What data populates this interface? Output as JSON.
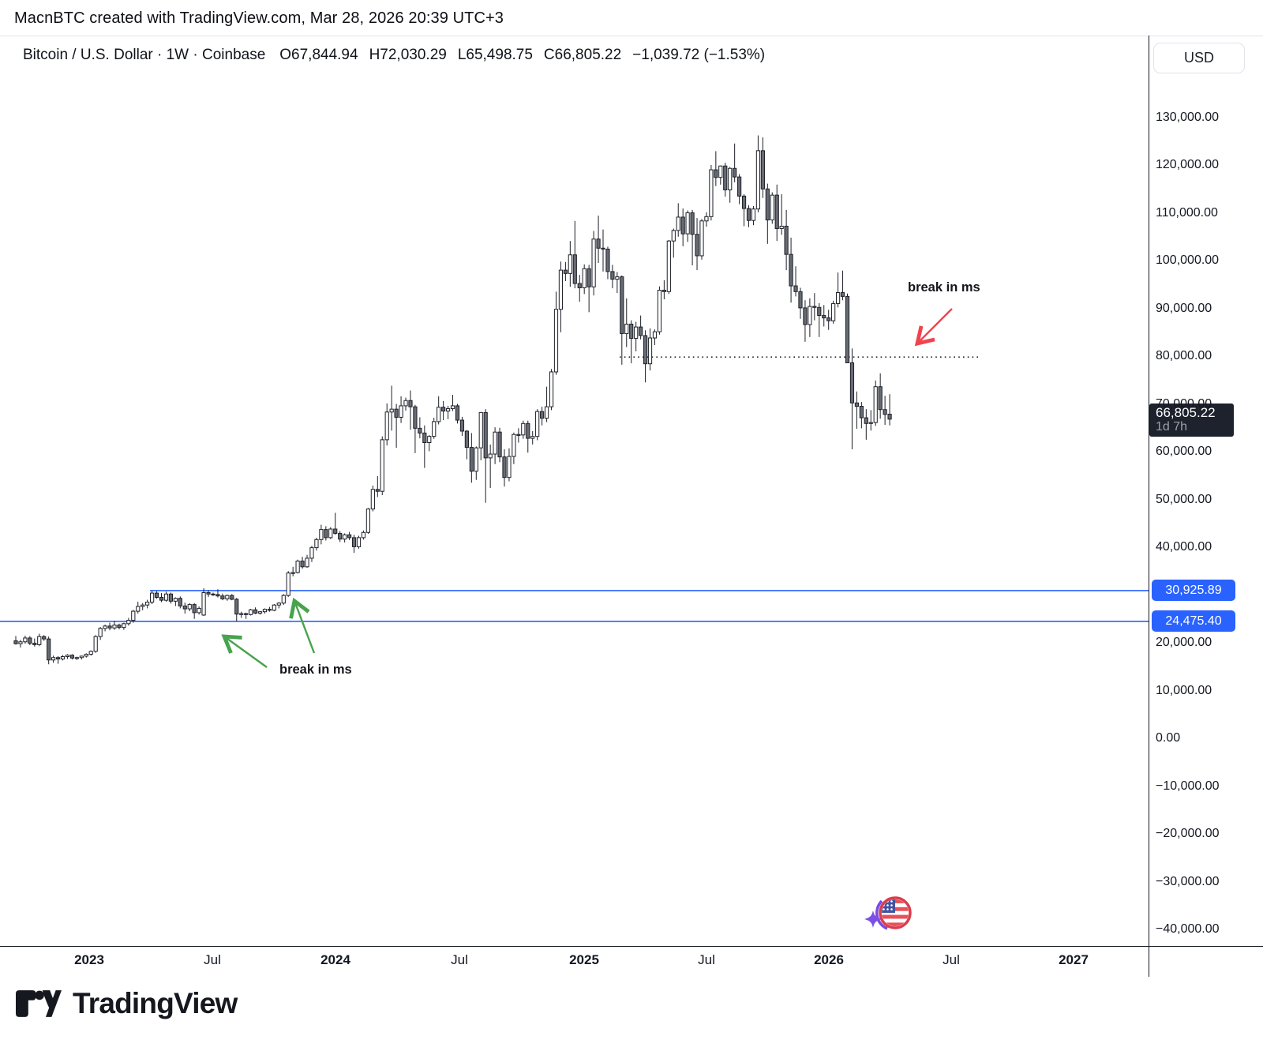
{
  "attribution": "MacnBTC created with TradingView.com, Mar 28, 2026 20:39 UTC+3",
  "legend": {
    "series_title": "Bitcoin / U.S. Dollar · 1W · Coinbase",
    "open": "O67,844.94",
    "high": "H72,030.29",
    "low": "L65,498.75",
    "close": "C66,805.22",
    "change": "−1,039.72 (−1.53%)"
  },
  "axis_right": {
    "currency_button": "USD",
    "price_labels": [
      {
        "value": 130000,
        "text": "130,000.00"
      },
      {
        "value": 120000,
        "text": "120,000.00"
      },
      {
        "value": 110000,
        "text": "110,000.00"
      },
      {
        "value": 100000,
        "text": "100,000.00"
      },
      {
        "value": 90000,
        "text": "90,000.00"
      },
      {
        "value": 80000,
        "text": "80,000.00"
      },
      {
        "value": 70000,
        "text": "70,000.00"
      },
      {
        "value": 60000,
        "text": "60,000.00"
      },
      {
        "value": 50000,
        "text": "50,000.00"
      },
      {
        "value": 40000,
        "text": "40,000.00"
      },
      {
        "value": 20000,
        "text": "20,000.00"
      },
      {
        "value": 10000,
        "text": "10,000.00"
      },
      {
        "value": 0,
        "text": "0.00"
      },
      {
        "value": -10000,
        "text": "−10,000.00"
      },
      {
        "value": -20000,
        "text": "−20,000.00"
      },
      {
        "value": -30000,
        "text": "−30,000.00"
      },
      {
        "value": -40000,
        "text": "−40,000.00"
      }
    ],
    "level_tags": [
      {
        "value": 30925.89,
        "text": "30,925.89"
      },
      {
        "value": 24475.4,
        "text": "24,475.40"
      }
    ],
    "current_price_tag": {
      "price_value": 66805.22,
      "price_text": "66,805.22",
      "countdown": "1d 7h"
    }
  },
  "time_axis": {
    "labels": [
      "2023",
      "Jul",
      "2024",
      "Jul",
      "2025",
      "Jul",
      "2026",
      "Jul",
      "2027"
    ]
  },
  "annotations": {
    "red_note": {
      "text": "break in ms"
    },
    "green_note": {
      "text": "break in ms"
    }
  },
  "footer": {
    "logo_text": "TradingView"
  },
  "colors": {
    "level_blue": "#2962ff",
    "arrow_red": "#f1434e",
    "arrow_green": "#47a34c",
    "candle_up_fill": "#ffffff",
    "candle_down_fill": "#676b73",
    "candle_stroke": "#1c1f27",
    "price_tag_bg": "#1d222d",
    "axis_line": "#161a25"
  },
  "chart_data": {
    "type": "candlestick",
    "title": "Bitcoin / U.S. Dollar",
    "interval": "1W",
    "exchange": "Coinbase",
    "units": "USD thousands per candle [open, high, low, close]",
    "y_axis_visible_range": [
      -40000,
      130000
    ],
    "y_axis_tick_step": 10000,
    "x_axis_labels": [
      "2023",
      "Jul",
      "2024",
      "Jul",
      "2025",
      "Jul",
      "2026",
      "Jul",
      "2027"
    ],
    "grid": "off",
    "levels": [
      {
        "type": "hline",
        "price": 30925.89,
        "style": "solid",
        "color": "#2962ff",
        "label": "30,925.89"
      },
      {
        "type": "hline",
        "price": 24475.4,
        "style": "solid",
        "color": "#2962ff",
        "label": "24,475.40"
      },
      {
        "type": "hline",
        "price": 79800,
        "style": "dotted",
        "color": "#22252b",
        "label": ""
      }
    ],
    "candles": [
      [
        20.4,
        21.4,
        19.6,
        19.8
      ],
      [
        19.8,
        20.6,
        19.0,
        20.2
      ],
      [
        20.2,
        21.5,
        19.8,
        21.0
      ],
      [
        21.0,
        21.4,
        19.5,
        19.9
      ],
      [
        19.9,
        20.9,
        19.2,
        19.6
      ],
      [
        19.6,
        21.9,
        19.3,
        21.3
      ],
      [
        21.3,
        21.6,
        20.4,
        20.8
      ],
      [
        20.8,
        21.3,
        15.5,
        16.4
      ],
      [
        16.4,
        17.3,
        15.8,
        16.9
      ],
      [
        16.9,
        17.2,
        15.6,
        16.6
      ],
      [
        16.6,
        17.4,
        16.3,
        17.1
      ],
      [
        17.1,
        17.6,
        16.6,
        17.4
      ],
      [
        17.4,
        17.6,
        16.5,
        16.8
      ],
      [
        16.8,
        17.1,
        16.4,
        16.9
      ],
      [
        16.9,
        17.3,
        16.5,
        17.2
      ],
      [
        17.2,
        17.8,
        16.9,
        17.6
      ],
      [
        17.6,
        18.4,
        17.3,
        18.2
      ],
      [
        18.2,
        21.6,
        17.9,
        21.3
      ],
      [
        21.3,
        23.3,
        20.6,
        23.0
      ],
      [
        23.0,
        23.8,
        22.4,
        23.5
      ],
      [
        23.5,
        24.2,
        22.6,
        23.1
      ],
      [
        23.1,
        24.6,
        22.7,
        23.7
      ],
      [
        23.7,
        24.0,
        22.8,
        23.2
      ],
      [
        23.2,
        24.2,
        22.7,
        24.0
      ],
      [
        24.0,
        25.2,
        23.6,
        24.7
      ],
      [
        24.7,
        26.9,
        24.2,
        26.6
      ],
      [
        26.6,
        28.6,
        26.1,
        27.6
      ],
      [
        27.6,
        28.3,
        26.8,
        27.9
      ],
      [
        27.9,
        29.0,
        27.2,
        28.5
      ],
      [
        28.5,
        30.93,
        28.1,
        30.4
      ],
      [
        30.4,
        30.8,
        29.2,
        29.5
      ],
      [
        29.5,
        30.4,
        28.5,
        28.9
      ],
      [
        28.9,
        30.7,
        28.6,
        30.2
      ],
      [
        30.2,
        30.5,
        28.2,
        28.7
      ],
      [
        28.7,
        29.5,
        27.7,
        29.3
      ],
      [
        29.3,
        29.7,
        27.2,
        27.7
      ],
      [
        27.7,
        28.4,
        26.1,
        27.1
      ],
      [
        27.1,
        28.3,
        26.6,
        28.0
      ],
      [
        28.0,
        28.3,
        25.0,
        26.3
      ],
      [
        26.3,
        27.6,
        25.9,
        27.2
      ],
      [
        25.8,
        31.4,
        25.6,
        30.5
      ],
      [
        30.5,
        31.0,
        29.6,
        30.2
      ],
      [
        30.2,
        30.5,
        29.8,
        30.1
      ],
      [
        30.1,
        31.2,
        29.5,
        29.8
      ],
      [
        29.8,
        30.3,
        28.9,
        29.2
      ],
      [
        29.2,
        30.1,
        28.8,
        29.9
      ],
      [
        29.9,
        30.2,
        28.9,
        29.1
      ],
      [
        29.1,
        29.4,
        24.48,
        26.0
      ],
      [
        26.0,
        26.5,
        25.2,
        26.1
      ],
      [
        26.1,
        26.3,
        25.0,
        25.9
      ],
      [
        25.9,
        27.1,
        25.7,
        26.9
      ],
      [
        26.9,
        27.4,
        26.0,
        26.2
      ],
      [
        26.2,
        26.6,
        25.9,
        26.5
      ],
      [
        26.5,
        27.2,
        26.1,
        27.0
      ],
      [
        27.0,
        27.5,
        26.5,
        26.8
      ],
      [
        26.8,
        28.1,
        26.6,
        27.9
      ],
      [
        27.9,
        28.5,
        27.2,
        28.3
      ],
      [
        28.3,
        30.2,
        27.9,
        29.9
      ],
      [
        29.9,
        35.0,
        29.6,
        34.6
      ],
      [
        34.6,
        35.9,
        33.9,
        34.7
      ],
      [
        34.7,
        37.4,
        34.5,
        37.1
      ],
      [
        37.1,
        38.0,
        35.5,
        35.9
      ],
      [
        35.9,
        38.4,
        35.7,
        37.7
      ],
      [
        37.7,
        40.3,
        36.9,
        39.9
      ],
      [
        39.9,
        42.0,
        39.3,
        41.6
      ],
      [
        41.6,
        44.7,
        40.6,
        43.7
      ],
      [
        43.7,
        44.4,
        41.4,
        42.0
      ],
      [
        42.0,
        44.2,
        41.7,
        43.8
      ],
      [
        43.8,
        47.2,
        42.6,
        42.9
      ],
      [
        42.9,
        43.4,
        41.1,
        41.7
      ],
      [
        41.7,
        42.9,
        41.0,
        42.6
      ],
      [
        42.6,
        43.2,
        41.5,
        42.0
      ],
      [
        42.0,
        42.6,
        38.8,
        40.1
      ],
      [
        40.1,
        42.4,
        39.7,
        42.0
      ],
      [
        42.0,
        43.5,
        41.6,
        43.1
      ],
      [
        43.1,
        48.2,
        42.8,
        48.0
      ],
      [
        48.0,
        52.9,
        47.5,
        52.1
      ],
      [
        52.1,
        54.9,
        50.5,
        51.7
      ],
      [
        51.7,
        63.2,
        50.9,
        62.5
      ],
      [
        62.5,
        70.1,
        61.3,
        68.3
      ],
      [
        68.3,
        73.8,
        64.4,
        68.9
      ],
      [
        68.9,
        70.0,
        60.8,
        67.2
      ],
      [
        67.2,
        71.6,
        66.0,
        69.6
      ],
      [
        69.6,
        71.3,
        68.6,
        70.7
      ],
      [
        70.7,
        72.8,
        64.6,
        69.4
      ],
      [
        69.4,
        69.8,
        59.7,
        64.9
      ],
      [
        64.9,
        67.2,
        62.8,
        63.9
      ],
      [
        63.9,
        65.5,
        56.6,
        61.9
      ],
      [
        61.9,
        63.5,
        60.1,
        63.2
      ],
      [
        63.2,
        67.1,
        62.7,
        66.3
      ],
      [
        66.3,
        71.6,
        65.7,
        69.3
      ],
      [
        69.3,
        70.6,
        66.6,
        68.5
      ],
      [
        68.5,
        69.6,
        66.8,
        69.0
      ],
      [
        69.0,
        71.9,
        68.5,
        69.6
      ],
      [
        69.6,
        70.0,
        65.9,
        66.6
      ],
      [
        66.6,
        67.3,
        63.3,
        64.3
      ],
      [
        64.3,
        64.5,
        58.4,
        60.9
      ],
      [
        60.9,
        63.9,
        53.5,
        55.9
      ],
      [
        55.9,
        61.1,
        54.1,
        60.8
      ],
      [
        60.8,
        68.3,
        58.2,
        68.2
      ],
      [
        68.2,
        68.9,
        49.3,
        58.7
      ],
      [
        58.7,
        61.5,
        52.4,
        59.5
      ],
      [
        59.5,
        65.1,
        57.4,
        64.1
      ],
      [
        64.1,
        65.0,
        57.8,
        58.9
      ],
      [
        58.9,
        60.5,
        52.7,
        54.6
      ],
      [
        54.6,
        60.7,
        53.8,
        59.0
      ],
      [
        59.0,
        64.0,
        57.4,
        63.6
      ],
      [
        63.6,
        64.9,
        61.9,
        63.5
      ],
      [
        63.5,
        66.5,
        62.7,
        65.9
      ],
      [
        65.9,
        66.5,
        59.8,
        62.8
      ],
      [
        62.8,
        64.3,
        61.5,
        63.2
      ],
      [
        63.2,
        68.9,
        62.4,
        68.4
      ],
      [
        68.4,
        69.4,
        65.5,
        67.0
      ],
      [
        67.0,
        73.6,
        66.2,
        69.4
      ],
      [
        69.4,
        77.3,
        68.7,
        76.7
      ],
      [
        76.7,
        93.5,
        76.1,
        89.8
      ],
      [
        89.8,
        99.8,
        85.0,
        98.0
      ],
      [
        98.0,
        99.7,
        95.7,
        97.3
      ],
      [
        97.3,
        104.1,
        94.5,
        101.2
      ],
      [
        101.2,
        108.3,
        94.2,
        95.2
      ],
      [
        95.2,
        97.0,
        91.4,
        94.3
      ],
      [
        94.3,
        99.2,
        93.0,
        98.3
      ],
      [
        98.3,
        99.1,
        89.2,
        94.5
      ],
      [
        94.5,
        106.2,
        92.7,
        104.5
      ],
      [
        104.5,
        109.4,
        99.5,
        102.6
      ],
      [
        102.6,
        106.5,
        97.7,
        102.4
      ],
      [
        102.4,
        102.9,
        96.1,
        97.7
      ],
      [
        97.7,
        99.1,
        94.2,
        96.1
      ],
      [
        96.1,
        97.6,
        93.2,
        96.6
      ],
      [
        96.6,
        96.9,
        78.2,
        84.7
      ],
      [
        84.7,
        92.1,
        81.9,
        86.7
      ],
      [
        86.7,
        87.5,
        78.5,
        83.7
      ],
      [
        83.7,
        87.2,
        81.0,
        86.1
      ],
      [
        86.1,
        88.5,
        83.5,
        84.3
      ],
      [
        84.3,
        85.4,
        74.5,
        78.4
      ],
      [
        78.4,
        85.8,
        77.0,
        83.8
      ],
      [
        83.8,
        85.6,
        82.3,
        85.1
      ],
      [
        85.1,
        94.6,
        84.5,
        93.8
      ],
      [
        93.8,
        95.9,
        91.9,
        93.5
      ],
      [
        93.5,
        104.3,
        93.0,
        104.1
      ],
      [
        104.1,
        106.7,
        100.6,
        106.3
      ],
      [
        106.3,
        112.0,
        105.0,
        109.1
      ],
      [
        109.1,
        110.9,
        103.0,
        105.6
      ],
      [
        105.6,
        110.5,
        103.9,
        110.0
      ],
      [
        110.0,
        110.6,
        99.0,
        105.5
      ],
      [
        105.5,
        108.9,
        98.0,
        101.0
      ],
      [
        101.0,
        108.7,
        100.2,
        108.3
      ],
      [
        108.3,
        110.1,
        107.1,
        109.2
      ],
      [
        109.2,
        120.0,
        108.4,
        119.0
      ],
      [
        119.0,
        122.9,
        115.6,
        117.4
      ],
      [
        117.4,
        119.9,
        115.9,
        119.8
      ],
      [
        119.8,
        120.5,
        113.4,
        114.8
      ],
      [
        114.8,
        119.6,
        112.1,
        119.3
      ],
      [
        119.3,
        124.5,
        116.4,
        117.5
      ],
      [
        117.5,
        118.1,
        111.8,
        113.5
      ],
      [
        113.5,
        113.9,
        107.2,
        110.9
      ],
      [
        110.9,
        111.6,
        107.0,
        108.4
      ],
      [
        108.4,
        111.4,
        107.4,
        110.8
      ],
      [
        110.8,
        126.2,
        110.1,
        123.0
      ],
      [
        123.0,
        125.8,
        113.1,
        115.0
      ],
      [
        115.0,
        116.1,
        103.5,
        108.5
      ],
      [
        108.5,
        114.3,
        107.7,
        113.7
      ],
      [
        113.7,
        115.9,
        104.1,
        106.7
      ],
      [
        106.7,
        113.9,
        105.4,
        107.2
      ],
      [
        107.2,
        110.6,
        98.0,
        101.3
      ],
      [
        101.3,
        104.8,
        91.2,
        94.7
      ],
      [
        94.7,
        98.8,
        92.5,
        93.5
      ],
      [
        93.5,
        94.3,
        87.8,
        90.1
      ],
      [
        90.1,
        91.7,
        83.0,
        86.6
      ],
      [
        86.6,
        92.1,
        84.0,
        90.4
      ],
      [
        90.4,
        93.2,
        87.5,
        90.2
      ],
      [
        90.2,
        91.1,
        84.0,
        88.5
      ],
      [
        88.5,
        90.7,
        86.2,
        88.0
      ],
      [
        88.0,
        89.7,
        85.5,
        87.4
      ],
      [
        87.4,
        91.6,
        86.8,
        91.0
      ],
      [
        91.0,
        97.5,
        90.2,
        93.3
      ],
      [
        93.3,
        97.9,
        91.7,
        92.5
      ],
      [
        92.5,
        93.1,
        79.0,
        78.6
      ],
      [
        78.6,
        81.6,
        60.5,
        70.2
      ],
      [
        70.2,
        72.6,
        64.8,
        69.5
      ],
      [
        69.5,
        70.4,
        64.9,
        67.1
      ],
      [
        67.1,
        68.9,
        62.5,
        65.9
      ],
      [
        65.9,
        68.7,
        64.4,
        66.1
      ],
      [
        66.1,
        74.9,
        65.4,
        73.6
      ],
      [
        73.6,
        76.4,
        66.9,
        68.8
      ],
      [
        68.8,
        71.7,
        65.6,
        67.8
      ],
      [
        67.845,
        72.03,
        65.499,
        66.805
      ]
    ]
  }
}
